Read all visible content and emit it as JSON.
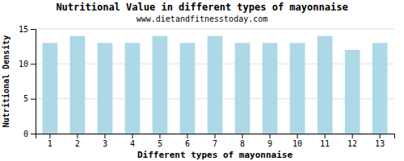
{
  "chart_data": {
    "type": "bar",
    "title": "Nutritional Value in different types of mayonnaise",
    "subtitle": "www.dietandfitnesstoday.com",
    "xlabel": "Different types of mayonnaise",
    "ylabel": "Nutritional Density",
    "categories": [
      1,
      2,
      3,
      4,
      5,
      6,
      7,
      8,
      9,
      10,
      11,
      12,
      13
    ],
    "values": [
      13.0,
      14.0,
      13.0,
      13.0,
      14.0,
      13.0,
      14.0,
      13.0,
      13.0,
      13.0,
      14.0,
      12.0,
      13.0
    ],
    "color": "#add8e6",
    "ylim": [
      0,
      15
    ],
    "yticks": [
      0,
      5,
      10,
      15
    ],
    "grid": true
  }
}
